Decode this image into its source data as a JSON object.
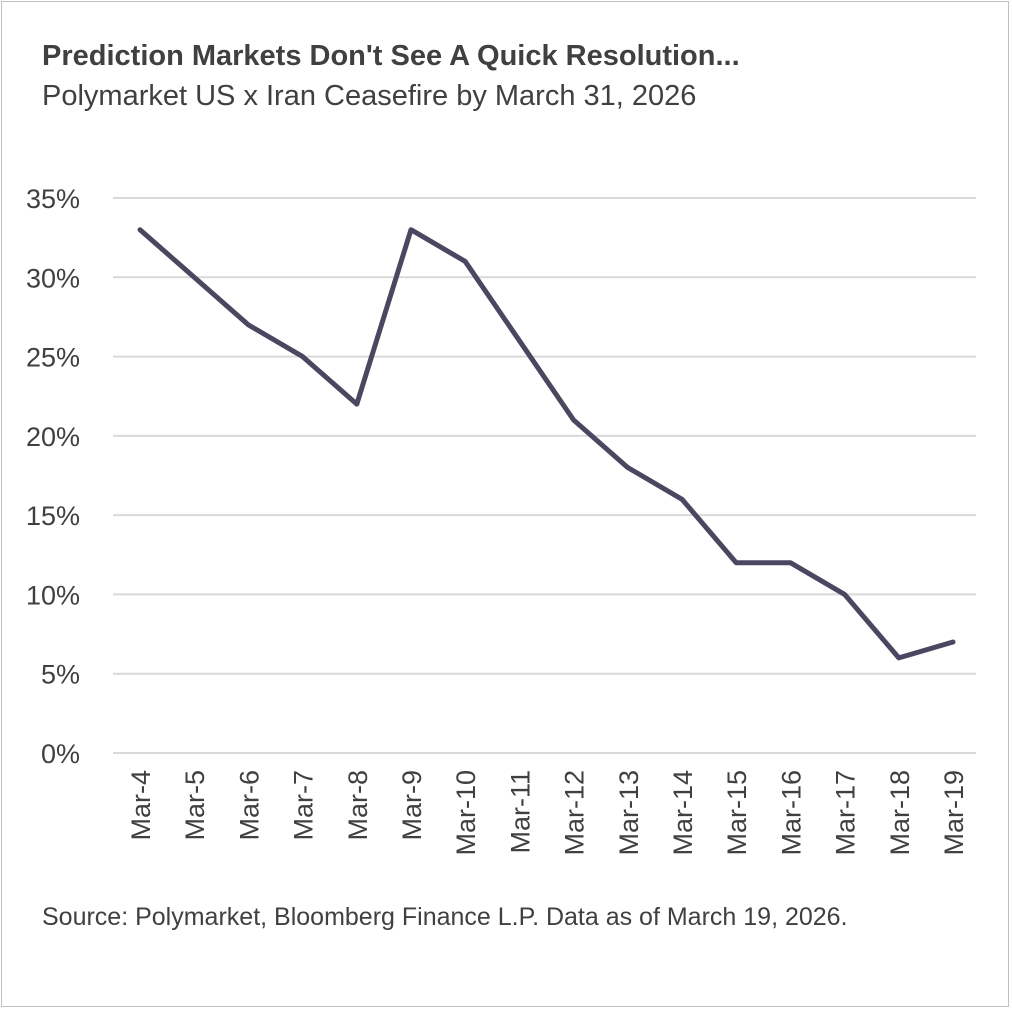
{
  "chart_data": {
    "type": "line",
    "title": "Prediction Markets Don't See A Quick Resolution...",
    "subtitle": "Polymarket US x Iran Ceasefire by March 31, 2026",
    "source": "Source: Polymarket, Bloomberg Finance L.P. Data as of March 19, 2026.",
    "categories": [
      "Mar-4",
      "Mar-5",
      "Mar-6",
      "Mar-7",
      "Mar-8",
      "Mar-9",
      "Mar-10",
      "Mar-11",
      "Mar-12",
      "Mar-13",
      "Mar-14",
      "Mar-15",
      "Mar-16",
      "Mar-17",
      "Mar-18",
      "Mar-19"
    ],
    "values": [
      33,
      30,
      27,
      25,
      22,
      33,
      31,
      26,
      21,
      18,
      16,
      12,
      12,
      10,
      6,
      7
    ],
    "yticks": [
      "0%",
      "5%",
      "10%",
      "15%",
      "20%",
      "25%",
      "30%",
      "35%"
    ],
    "ylim": [
      0,
      35
    ],
    "grid": true,
    "line_color": "#4a4860",
    "grid_color": "#d9d9d9"
  }
}
